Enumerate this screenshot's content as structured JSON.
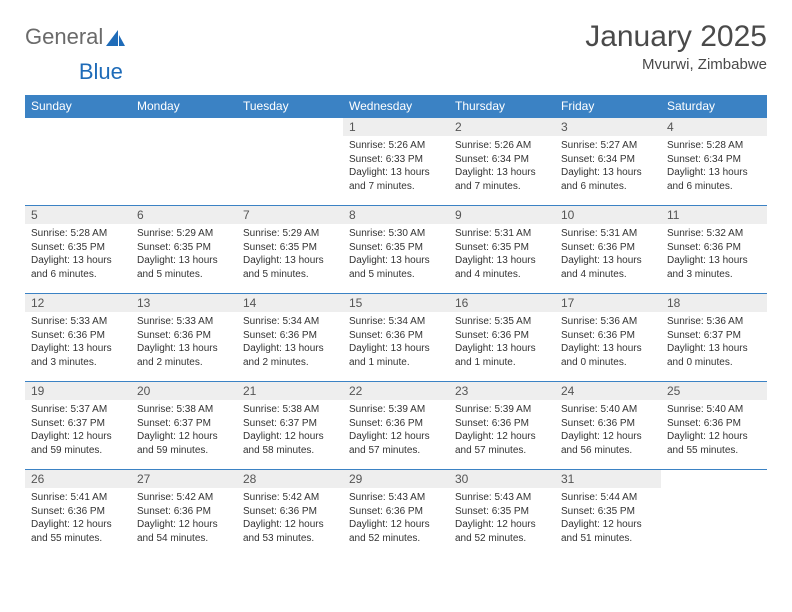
{
  "brand": {
    "part1": "General",
    "part2": "Blue"
  },
  "title": "January 2025",
  "location": "Mvurwi, Zimbabwe",
  "colors": {
    "header_bg": "#3b82c4",
    "header_text": "#ffffff",
    "row_border": "#3b82c4",
    "daynum_bg": "#eeeeee",
    "text": "#333333",
    "logo_gray": "#6a6a6a",
    "logo_blue": "#1e6bb8",
    "title_gray": "#4a4a4a"
  },
  "layout": {
    "title_fontsize": 30,
    "location_fontsize": 15,
    "header_fontsize": 12,
    "daynum_fontsize": 12,
    "cell_fontsize": 10
  },
  "weekdays": [
    "Sunday",
    "Monday",
    "Tuesday",
    "Wednesday",
    "Thursday",
    "Friday",
    "Saturday"
  ],
  "weeks": [
    [
      {
        "n": "",
        "sr": "",
        "ss": "",
        "dl": ""
      },
      {
        "n": "",
        "sr": "",
        "ss": "",
        "dl": ""
      },
      {
        "n": "",
        "sr": "",
        "ss": "",
        "dl": ""
      },
      {
        "n": "1",
        "sr": "Sunrise: 5:26 AM",
        "ss": "Sunset: 6:33 PM",
        "dl": "Daylight: 13 hours and 7 minutes."
      },
      {
        "n": "2",
        "sr": "Sunrise: 5:26 AM",
        "ss": "Sunset: 6:34 PM",
        "dl": "Daylight: 13 hours and 7 minutes."
      },
      {
        "n": "3",
        "sr": "Sunrise: 5:27 AM",
        "ss": "Sunset: 6:34 PM",
        "dl": "Daylight: 13 hours and 6 minutes."
      },
      {
        "n": "4",
        "sr": "Sunrise: 5:28 AM",
        "ss": "Sunset: 6:34 PM",
        "dl": "Daylight: 13 hours and 6 minutes."
      }
    ],
    [
      {
        "n": "5",
        "sr": "Sunrise: 5:28 AM",
        "ss": "Sunset: 6:35 PM",
        "dl": "Daylight: 13 hours and 6 minutes."
      },
      {
        "n": "6",
        "sr": "Sunrise: 5:29 AM",
        "ss": "Sunset: 6:35 PM",
        "dl": "Daylight: 13 hours and 5 minutes."
      },
      {
        "n": "7",
        "sr": "Sunrise: 5:29 AM",
        "ss": "Sunset: 6:35 PM",
        "dl": "Daylight: 13 hours and 5 minutes."
      },
      {
        "n": "8",
        "sr": "Sunrise: 5:30 AM",
        "ss": "Sunset: 6:35 PM",
        "dl": "Daylight: 13 hours and 5 minutes."
      },
      {
        "n": "9",
        "sr": "Sunrise: 5:31 AM",
        "ss": "Sunset: 6:35 PM",
        "dl": "Daylight: 13 hours and 4 minutes."
      },
      {
        "n": "10",
        "sr": "Sunrise: 5:31 AM",
        "ss": "Sunset: 6:36 PM",
        "dl": "Daylight: 13 hours and 4 minutes."
      },
      {
        "n": "11",
        "sr": "Sunrise: 5:32 AM",
        "ss": "Sunset: 6:36 PM",
        "dl": "Daylight: 13 hours and 3 minutes."
      }
    ],
    [
      {
        "n": "12",
        "sr": "Sunrise: 5:33 AM",
        "ss": "Sunset: 6:36 PM",
        "dl": "Daylight: 13 hours and 3 minutes."
      },
      {
        "n": "13",
        "sr": "Sunrise: 5:33 AM",
        "ss": "Sunset: 6:36 PM",
        "dl": "Daylight: 13 hours and 2 minutes."
      },
      {
        "n": "14",
        "sr": "Sunrise: 5:34 AM",
        "ss": "Sunset: 6:36 PM",
        "dl": "Daylight: 13 hours and 2 minutes."
      },
      {
        "n": "15",
        "sr": "Sunrise: 5:34 AM",
        "ss": "Sunset: 6:36 PM",
        "dl": "Daylight: 13 hours and 1 minute."
      },
      {
        "n": "16",
        "sr": "Sunrise: 5:35 AM",
        "ss": "Sunset: 6:36 PM",
        "dl": "Daylight: 13 hours and 1 minute."
      },
      {
        "n": "17",
        "sr": "Sunrise: 5:36 AM",
        "ss": "Sunset: 6:36 PM",
        "dl": "Daylight: 13 hours and 0 minutes."
      },
      {
        "n": "18",
        "sr": "Sunrise: 5:36 AM",
        "ss": "Sunset: 6:37 PM",
        "dl": "Daylight: 13 hours and 0 minutes."
      }
    ],
    [
      {
        "n": "19",
        "sr": "Sunrise: 5:37 AM",
        "ss": "Sunset: 6:37 PM",
        "dl": "Daylight: 12 hours and 59 minutes."
      },
      {
        "n": "20",
        "sr": "Sunrise: 5:38 AM",
        "ss": "Sunset: 6:37 PM",
        "dl": "Daylight: 12 hours and 59 minutes."
      },
      {
        "n": "21",
        "sr": "Sunrise: 5:38 AM",
        "ss": "Sunset: 6:37 PM",
        "dl": "Daylight: 12 hours and 58 minutes."
      },
      {
        "n": "22",
        "sr": "Sunrise: 5:39 AM",
        "ss": "Sunset: 6:36 PM",
        "dl": "Daylight: 12 hours and 57 minutes."
      },
      {
        "n": "23",
        "sr": "Sunrise: 5:39 AM",
        "ss": "Sunset: 6:36 PM",
        "dl": "Daylight: 12 hours and 57 minutes."
      },
      {
        "n": "24",
        "sr": "Sunrise: 5:40 AM",
        "ss": "Sunset: 6:36 PM",
        "dl": "Daylight: 12 hours and 56 minutes."
      },
      {
        "n": "25",
        "sr": "Sunrise: 5:40 AM",
        "ss": "Sunset: 6:36 PM",
        "dl": "Daylight: 12 hours and 55 minutes."
      }
    ],
    [
      {
        "n": "26",
        "sr": "Sunrise: 5:41 AM",
        "ss": "Sunset: 6:36 PM",
        "dl": "Daylight: 12 hours and 55 minutes."
      },
      {
        "n": "27",
        "sr": "Sunrise: 5:42 AM",
        "ss": "Sunset: 6:36 PM",
        "dl": "Daylight: 12 hours and 54 minutes."
      },
      {
        "n": "28",
        "sr": "Sunrise: 5:42 AM",
        "ss": "Sunset: 6:36 PM",
        "dl": "Daylight: 12 hours and 53 minutes."
      },
      {
        "n": "29",
        "sr": "Sunrise: 5:43 AM",
        "ss": "Sunset: 6:36 PM",
        "dl": "Daylight: 12 hours and 52 minutes."
      },
      {
        "n": "30",
        "sr": "Sunrise: 5:43 AM",
        "ss": "Sunset: 6:35 PM",
        "dl": "Daylight: 12 hours and 52 minutes."
      },
      {
        "n": "31",
        "sr": "Sunrise: 5:44 AM",
        "ss": "Sunset: 6:35 PM",
        "dl": "Daylight: 12 hours and 51 minutes."
      },
      {
        "n": "",
        "sr": "",
        "ss": "",
        "dl": ""
      }
    ]
  ]
}
